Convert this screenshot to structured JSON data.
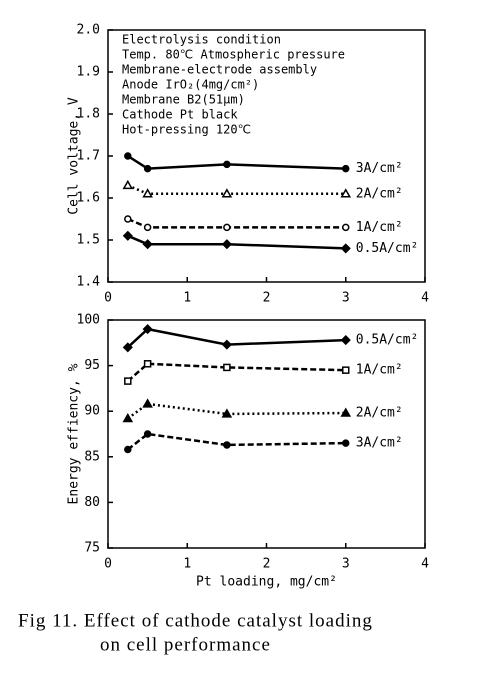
{
  "chart_data": [
    {
      "type": "line",
      "ylabel": "Cell voltage, V",
      "xlim": [
        0,
        4
      ],
      "xticks": [
        0,
        1,
        2,
        3,
        4
      ],
      "ylim": [
        1.4,
        2.0
      ],
      "yticks": [
        1.4,
        1.5,
        1.6,
        1.7,
        1.8,
        1.9,
        {
          "value": 2.0,
          "label": "2.0"
        }
      ],
      "annotations": [
        "Electrolysis condition",
        " Temp. 80℃  Atmospheric pressure",
        "Membrane-electrode assembly",
        " Anode    IrO₂(4mg/cm²)",
        " Membrane B2(51μm)",
        " Cathode  Pt black",
        " Hot-pressing 120℃"
      ],
      "x": [
        0.25,
        0.5,
        1.5,
        3.0
      ],
      "series": [
        {
          "name": "3A/cm²",
          "color": "#000",
          "marker": "circle-filled",
          "dash": "solid",
          "values": [
            1.7,
            1.67,
            1.68,
            1.67
          ]
        },
        {
          "name": "2A/cm²",
          "color": "#000",
          "marker": "triangle-open",
          "dash": "dotted",
          "values": [
            1.63,
            1.61,
            1.61,
            1.61
          ]
        },
        {
          "name": "1A/cm²",
          "color": "#000",
          "marker": "circle-open",
          "dash": "dashed",
          "values": [
            1.55,
            1.53,
            1.53,
            1.53
          ]
        },
        {
          "name": "0.5A/cm²",
          "color": "#000",
          "marker": "diamond-filled",
          "dash": "solid",
          "values": [
            1.51,
            1.49,
            1.49,
            1.48
          ]
        }
      ]
    },
    {
      "type": "line",
      "ylabel": "Energy effiency, %",
      "xlabel": "Pt loading, mg/cm²",
      "xlim": [
        0,
        4
      ],
      "xticks": [
        0,
        1,
        2,
        3,
        4
      ],
      "ylim": [
        75,
        100
      ],
      "yticks": [
        75,
        80,
        85,
        90,
        95,
        100
      ],
      "x": [
        0.25,
        0.5,
        1.5,
        3.0
      ],
      "series": [
        {
          "name": "0.5A/cm²",
          "color": "#000",
          "marker": "diamond-filled",
          "dash": "solid",
          "values": [
            97.0,
            99.0,
            97.3,
            97.8
          ]
        },
        {
          "name": "1A/cm²",
          "color": "#000",
          "marker": "square-open",
          "dash": "dashed",
          "values": [
            93.3,
            95.2,
            94.8,
            94.5
          ]
        },
        {
          "name": "2A/cm²",
          "color": "#000",
          "marker": "triangle-filled",
          "dash": "dotted",
          "values": [
            89.2,
            90.8,
            89.7,
            89.8
          ]
        },
        {
          "name": "3A/cm²",
          "color": "#000",
          "marker": "circle-filled",
          "dash": "dashed",
          "values": [
            85.8,
            87.5,
            86.3,
            86.5
          ]
        }
      ]
    }
  ],
  "caption": [
    "Fig 11. Effect of cathode catalyst loading",
    "on cell performance"
  ]
}
